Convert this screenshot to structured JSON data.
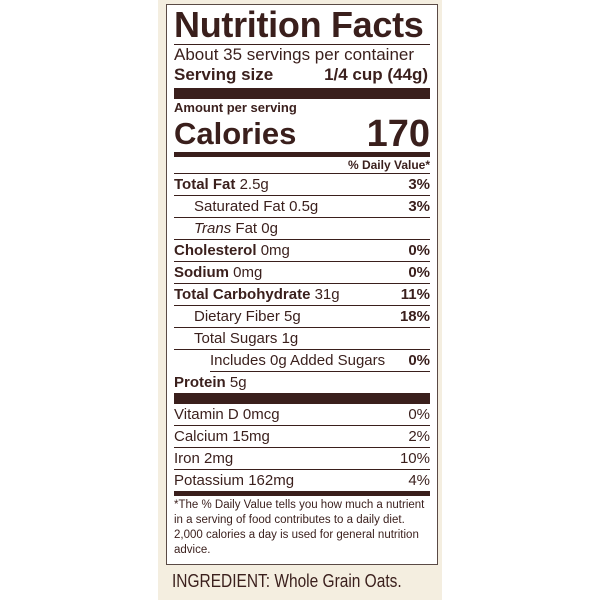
{
  "title": "Nutrition Facts",
  "servings_per_container": "About 35 servings per container",
  "serving_size_label": "Serving size",
  "serving_size_value": "1/4 cup (44g)",
  "amount_per_serving": "Amount per serving",
  "calories_label": "Calories",
  "calories_value": "170",
  "daily_value_header": "% Daily Value*",
  "nutrients": [
    {
      "name": "Total Fat",
      "amount": "2.5g",
      "dv": "3%",
      "bold": true,
      "indent": 0
    },
    {
      "name": "Saturated Fat",
      "amount": "0.5g",
      "dv": "3%",
      "bold": false,
      "indent": 1
    },
    {
      "name": "Trans",
      "name_suffix": " Fat",
      "amount": "0g",
      "dv": "",
      "bold": false,
      "indent": 1
    },
    {
      "name": "Cholesterol",
      "amount": "0mg",
      "dv": "0%",
      "bold": true,
      "indent": 0
    },
    {
      "name": "Sodium",
      "amount": "0mg",
      "dv": "0%",
      "bold": true,
      "indent": 0
    },
    {
      "name": "Total Carbohydrate",
      "amount": "31g",
      "dv": "11%",
      "bold": true,
      "indent": 0
    },
    {
      "name": "Dietary Fiber",
      "amount": "5g",
      "dv": "18%",
      "bold": false,
      "indent": 1
    },
    {
      "name": "Total Sugars",
      "amount": "1g",
      "dv": "",
      "bold": false,
      "indent": 1
    },
    {
      "name": "Includes 0g Added Sugars",
      "amount": "",
      "dv": "0%",
      "bold": false,
      "indent": 2
    },
    {
      "name": "Protein",
      "amount": "5g",
      "dv": "",
      "bold": true,
      "indent": 0
    }
  ],
  "micronutrients": [
    {
      "name": "Vitamin D",
      "amount": "0mcg",
      "dv": "0%"
    },
    {
      "name": "Calcium",
      "amount": "15mg",
      "dv": "2%"
    },
    {
      "name": "Iron",
      "amount": "2mg",
      "dv": "10%"
    },
    {
      "name": "Potassium",
      "amount": "162mg",
      "dv": "4%"
    }
  ],
  "footnote": "*The % Daily Value tells you how much a nutrient in a serving of food contributes to a daily diet. 2,000 calories a day is used for general nutrition advice.",
  "ingredients": "INGREDIENT: Whole Grain Oats.",
  "colors": {
    "text": "#3a1f1c",
    "panel": "#f4eee0"
  }
}
